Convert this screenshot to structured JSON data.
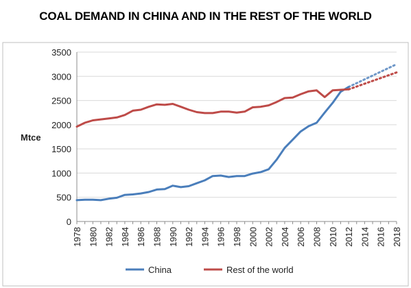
{
  "chart_data": {
    "type": "line",
    "title": "COAL DEMAND IN CHINA AND IN THE REST OF THE WORLD",
    "ylabel": "Mtce",
    "xlabel": "",
    "ylim": [
      0,
      3500
    ],
    "yticks": [
      0,
      500,
      1000,
      1500,
      2000,
      2500,
      3000,
      3500
    ],
    "x": [
      1978,
      1979,
      1980,
      1981,
      1982,
      1983,
      1984,
      1985,
      1986,
      1987,
      1988,
      1989,
      1990,
      1991,
      1992,
      1993,
      1994,
      1995,
      1996,
      1997,
      1998,
      1999,
      2000,
      2001,
      2002,
      2003,
      2004,
      2005,
      2006,
      2007,
      2008,
      2009,
      2010,
      2011,
      2012
    ],
    "xticks": [
      1978,
      1980,
      1982,
      1984,
      1986,
      1988,
      1990,
      1992,
      1994,
      1996,
      1998,
      2000,
      2002,
      2004,
      2006,
      2008,
      2010,
      2012,
      2014,
      2016,
      2018
    ],
    "grid": "horizontal",
    "legend": "bottom",
    "series": [
      {
        "name": "China",
        "color": "#4a7ebb",
        "values": [
          440,
          450,
          450,
          440,
          470,
          490,
          550,
          560,
          580,
          610,
          660,
          670,
          740,
          710,
          730,
          790,
          850,
          940,
          950,
          920,
          940,
          940,
          990,
          1020,
          1080,
          1280,
          1520,
          1690,
          1860,
          1970,
          2040,
          2250,
          2450,
          2680,
          2780
        ],
        "projection": {
          "x": [
            2012,
            2018
          ],
          "values": [
            2780,
            3250
          ]
        }
      },
      {
        "name": "Rest of the world",
        "color": "#be4b48",
        "values": [
          1960,
          2040,
          2090,
          2110,
          2130,
          2150,
          2200,
          2290,
          2310,
          2370,
          2420,
          2410,
          2430,
          2370,
          2310,
          2260,
          2240,
          2240,
          2270,
          2270,
          2250,
          2270,
          2360,
          2370,
          2400,
          2470,
          2550,
          2560,
          2630,
          2690,
          2710,
          2570,
          2710,
          2720,
          2730
        ],
        "projection": {
          "x": [
            2012,
            2018
          ],
          "values": [
            2730,
            3080
          ]
        }
      }
    ]
  }
}
